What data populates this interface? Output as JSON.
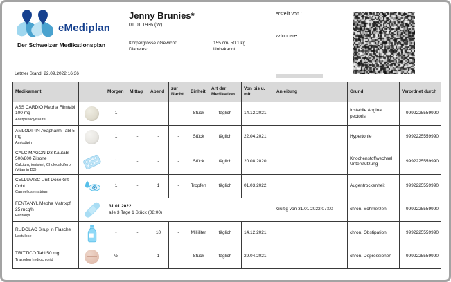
{
  "header": {
    "brand_name": "eMediplan",
    "brand_subtitle": "Der Schweizer Medikationsplan",
    "patient_name": "Jenny Brunies*",
    "patient_birth": "01.01.1936 (W)",
    "body_label": "Körpergrösse / Gewicht:",
    "body_value": "155 cm/ 50.1 kg",
    "diabetes_label": "Diabetes:",
    "diabetes_value": "Unbekannt",
    "created_by_label": "erstellt von :",
    "created_by_value": "zztopcare",
    "last_updated": "Letzter Stand: 22.09.2022 16:36",
    "qr_code": "qr-code-image",
    "brand_color": "#16418f"
  },
  "table": {
    "columns": [
      {
        "key": "medikament",
        "label": "Medikament"
      },
      {
        "key": "icon",
        "label": ""
      },
      {
        "key": "morgen",
        "label": "Morgen"
      },
      {
        "key": "mittag",
        "label": "Mittag"
      },
      {
        "key": "abend",
        "label": "Abend"
      },
      {
        "key": "nacht",
        "label": "zur Nacht"
      },
      {
        "key": "einheit",
        "label": "Einheit"
      },
      {
        "key": "art",
        "label": "Art der Medikation"
      },
      {
        "key": "von",
        "label": "Von bis u. mit"
      },
      {
        "key": "anleitung",
        "label": "Anleitung"
      },
      {
        "key": "grund",
        "label": "Grund"
      },
      {
        "key": "verordnet",
        "label": "Verordnet durch"
      }
    ],
    "rows": [
      {
        "name": "ASS CARDIO Mepha Filmtabl 100 mg",
        "substance": "Acetylsalicylsäure",
        "icon": "tablet-beige",
        "morgen": "1",
        "mittag": "-",
        "abend": "-",
        "nacht": "-",
        "einheit": "Stück",
        "art": "täglich",
        "von": "14.12.2021",
        "anleitung": "",
        "grund": "Instabile Angina pectoris",
        "verordnet": "9992225559990"
      },
      {
        "name": "AMLODIPIN Axapharm Tabl 5 mg",
        "substance": "Amlodipin",
        "icon": "tablet-white",
        "morgen": "1",
        "mittag": "-",
        "abend": "-",
        "nacht": "-",
        "einheit": "Stück",
        "art": "täglich",
        "von": "22.04.2021",
        "anleitung": "",
        "grund": "Hypertonie",
        "verordnet": "9992225559990"
      },
      {
        "name": "CALCIMAGON D3 Kautabl 500/800 Zitrone",
        "substance": "Calcium, ionisiert, Cholecalciferol (Vitamin D3)",
        "icon": "blister",
        "morgen": "1",
        "mittag": "-",
        "abend": "-",
        "nacht": "-",
        "einheit": "Stück",
        "art": "täglich",
        "von": "20.08.2020",
        "anleitung": "",
        "grund": "Knochenstoffwechsel Unterstützung",
        "verordnet": "9992225559990"
      },
      {
        "name": "CELLUVISC Unit Dose Gtt Opht",
        "substance": "Carmellose natrium",
        "icon": "eye-drops",
        "morgen": "1",
        "mittag": "-",
        "abend": "1",
        "nacht": "-",
        "einheit": "Tropfen",
        "art": "täglich",
        "von": "01.03.2022",
        "anleitung": "",
        "grund": "Augentrockenheit",
        "verordnet": "9992225559990"
      },
      {
        "name": "FENTANYL Mepha Matrixpfl 25 mcg/h",
        "substance": "Fentanyl",
        "icon": "patch",
        "schedule": {
          "date": "31.01.2022",
          "text": "alle 3 Tage 1 Stück (08:00)"
        },
        "anleitung": "Gültig von 31.01.2022 07:00",
        "grund": "chron. Schmerzen",
        "verordnet": "9992225559990"
      },
      {
        "name": "RUDOLAC Sirup in Flasche",
        "substance": "Lactulose",
        "icon": "bottle",
        "morgen": "-",
        "mittag": "-",
        "abend": "10",
        "nacht": "-",
        "einheit": "Milliliter",
        "art": "täglich",
        "von": "14.12.2021",
        "anleitung": "",
        "grund": "chron. Obstipation",
        "verordnet": "9992225559990"
      },
      {
        "name": "TRITTICO Tabl 50 mg",
        "substance": "Trazodon hydrochlorid",
        "icon": "tablet-pink",
        "morgen": "½",
        "mittag": "-",
        "abend": "1",
        "nacht": "-",
        "einheit": "Stück",
        "art": "täglich",
        "von": "29.04.2021",
        "anleitung": "",
        "grund": "chron. Depressionen",
        "verordnet": "9992225559990"
      }
    ]
  }
}
